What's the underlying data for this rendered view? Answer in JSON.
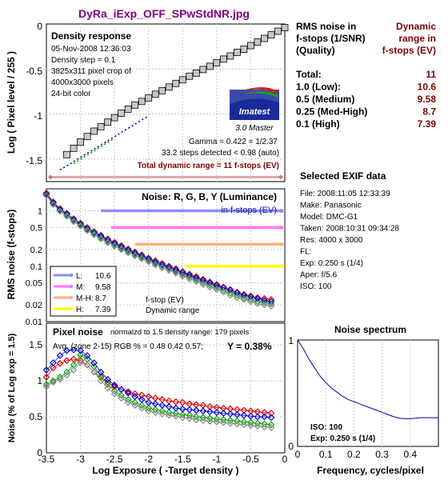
{
  "title": "DyRa_iExp_OFF_SPwStdNR.jpg",
  "colors": {
    "title": "#800080",
    "range": "#800000",
    "blue_text": "#1a1aa6",
    "marker_fill": "#c8c8c8"
  },
  "density": {
    "title": "Density response",
    "info": [
      "05-Nov-2008 12:36:03",
      "Density step = 0.1",
      "3825x311 pixel crop of",
      "4000x3000 pixels",
      "24-bit color"
    ],
    "gamma": "Gamma = 0.422 = 1/2.37",
    "steps": "33.2 steps detected < 0.98 (auto)",
    "total_range": "Total dynamic range = 11 f-stops (EV)",
    "ylabel": "Log ( Pixel level / 255 )",
    "yticks": [
      "0",
      "-0.5",
      "-1",
      "-1.5"
    ],
    "logo_text": "Imatest",
    "logo_version": "3.0  Master"
  },
  "noise_fstop": {
    "title": "Noise: R, G, B, Y (Luminance)",
    "subtitle": "in f-stops (EV)",
    "ylabel": "RMS noise (f-stops)",
    "yticks": [
      "1",
      "0.5",
      "0.2",
      "0.1",
      "0.05",
      "0.02",
      "0.01"
    ],
    "legend": [
      {
        "label": "L:",
        "value": "10.6",
        "color": "#8c8cff"
      },
      {
        "label": "M:",
        "value": "9.58",
        "color": "#ff77ff"
      },
      {
        "label": "M-H:",
        "value": "8.7",
        "color": "#ffb080"
      },
      {
        "label": "H:",
        "value": "7.39",
        "color": "#ffff00"
      }
    ],
    "note": [
      "f-stop (EV)",
      "Dynamic range"
    ]
  },
  "pixel_noise": {
    "title": "Pixel noise",
    "normalized": "normalzd to 1.5 density range: 179 pixels",
    "avg": "Avg. (zone 2-15) RGB % = 0.48  0.42  0.57;",
    "y_value": "Y = 0.38%",
    "ylabel": "Noise (% of Log exp = 1.5)",
    "xlabel": "Log Exposure ( -Target density )",
    "xticks": [
      "-3.5",
      "-3",
      "-2.5",
      "-2",
      "-1.5",
      "-1",
      "-0.5",
      "0"
    ],
    "yticks": [
      "1.5",
      "1",
      "0.5",
      "0"
    ]
  },
  "rms_table": {
    "head_left": [
      "RMS noise in",
      "f-stops (1/SNR)",
      "(Quality)"
    ],
    "head_right": [
      "Dynamic",
      "range in",
      "f-stops (EV)"
    ],
    "rows": [
      {
        "label": "Total:",
        "value": "11"
      },
      {
        "label": "1.0   (Low):",
        "value": "10.6"
      },
      {
        "label": "0.5   (Medium)",
        "value": "9.58"
      },
      {
        "label": "0.25 (Med-High)",
        "value": "8.7"
      },
      {
        "label": "0.1   (High)",
        "value": "7.39"
      }
    ]
  },
  "exif": {
    "title": "Selected EXIF data",
    "rows": [
      "File:  2008:11:05 12:33:39",
      "Make:  Panasonic",
      "Model: DMC-G1",
      "Taken: 2008:10:31 09:34:28",
      "Res:   4000 x 3000",
      "FL:",
      "Exp:   0.250 s  (1/4)",
      "Aper:  f/5.6",
      "ISO:   100"
    ]
  },
  "spectrum": {
    "title": "Noise spectrum",
    "xlabel": "Frequency, cycles/pixel",
    "xticks": [
      "0",
      "0.1",
      "0.2",
      "0.3",
      "0.4"
    ],
    "yticks": [
      "1",
      "0"
    ],
    "iso": "ISO:   100",
    "exp": "Exp:   0.250 s   (1/4)"
  },
  "chart_data": [
    {
      "type": "scatter",
      "title": "Density response",
      "ylabel": "Log ( Pixel level / 255 )",
      "xlim": [
        -3.5,
        0
      ],
      "ylim": [
        -1.75,
        0
      ],
      "series": [
        {
          "x": [
            -3.2,
            -3.1,
            -3.0,
            -2.9,
            -2.8,
            -2.7,
            -2.6,
            -2.5,
            -2.4,
            -2.3,
            -2.2,
            -2.1,
            -2.0,
            -1.9,
            -1.8,
            -1.7,
            -1.6,
            -1.5,
            -1.4,
            -1.3,
            -1.2,
            -1.1,
            -1.0,
            -0.9,
            -0.8,
            -0.7,
            -0.6,
            -0.5,
            -0.4,
            -0.3,
            -0.2,
            -0.1,
            0.0
          ],
          "y": [
            -1.45,
            -1.38,
            -1.31,
            -1.25,
            -1.19,
            -1.14,
            -1.09,
            -1.04,
            -0.99,
            -0.945,
            -0.9,
            -0.86,
            -0.82,
            -0.78,
            -0.74,
            -0.7,
            -0.66,
            -0.62,
            -0.58,
            -0.545,
            -0.505,
            -0.47,
            -0.43,
            -0.39,
            -0.355,
            -0.315,
            -0.28,
            -0.24,
            -0.2,
            -0.16,
            -0.12,
            -0.08,
            -0.04
          ]
        }
      ],
      "fit_lines": [
        {
          "color": "#0000cc",
          "points": [
            [
              -3.3,
              -1.62
            ],
            [
              -2.0,
              -1.02
            ]
          ]
        },
        {
          "color": "#00a000",
          "points": [
            [
              -3.1,
              -1.55
            ],
            [
              -2.5,
              -1.27
            ]
          ]
        }
      ],
      "range_bar": {
        "color": "#d8a8a8",
        "y": -1.7
      }
    },
    {
      "type": "line",
      "title": "Noise: R, G, B, Y (Luminance)",
      "ylabel": "RMS noise (f-stops)",
      "yscale": "log",
      "xlim": [
        -3.5,
        0
      ],
      "ylim": [
        0.01,
        2
      ],
      "thresholds": [
        {
          "value": 1.0,
          "start": -2.7,
          "color": "#8c8cff"
        },
        {
          "value": 0.5,
          "start": -2.55,
          "color": "#ff77ff"
        },
        {
          "value": 0.25,
          "start": -2.2,
          "color": "#ffb080"
        },
        {
          "value": 0.1,
          "start": -1.45,
          "color": "#ffff00"
        }
      ],
      "x": [
        -3.5,
        -3.4,
        -3.3,
        -3.2,
        -3.1,
        -3.0,
        -2.9,
        -2.8,
        -2.7,
        -2.6,
        -2.5,
        -2.4,
        -2.3,
        -2.2,
        -2.1,
        -2.0,
        -1.9,
        -1.8,
        -1.7,
        -1.6,
        -1.5,
        -1.4,
        -1.3,
        -1.2,
        -1.1,
        -1.0,
        -0.9,
        -0.8,
        -0.7,
        -0.6,
        -0.5,
        -0.4,
        -0.3,
        -0.2
      ],
      "series": [
        {
          "name": "R",
          "color": "#dd0000",
          "values": [
            2.1,
            1.45,
            1.1,
            0.9,
            0.72,
            0.6,
            0.5,
            0.42,
            0.36,
            0.31,
            0.27,
            0.235,
            0.205,
            0.18,
            0.16,
            0.14,
            0.125,
            0.112,
            0.1,
            0.09,
            0.08,
            0.072,
            0.065,
            0.058,
            0.052,
            0.047,
            0.042,
            0.038,
            0.034,
            0.031,
            0.029,
            0.027,
            0.026,
            0.025
          ]
        },
        {
          "name": "G",
          "color": "#00aa00",
          "values": [
            1.95,
            1.35,
            1.02,
            0.84,
            0.67,
            0.56,
            0.46,
            0.39,
            0.33,
            0.28,
            0.245,
            0.21,
            0.185,
            0.163,
            0.145,
            0.128,
            0.113,
            0.1,
            0.09,
            0.08,
            0.071,
            0.064,
            0.057,
            0.051,
            0.046,
            0.041,
            0.037,
            0.033,
            0.03,
            0.027,
            0.025,
            0.023,
            0.022,
            0.021
          ]
        },
        {
          "name": "B",
          "color": "#0000dd",
          "values": [
            2.0,
            1.4,
            1.06,
            0.88,
            0.7,
            0.58,
            0.48,
            0.41,
            0.35,
            0.3,
            0.26,
            0.225,
            0.197,
            0.173,
            0.153,
            0.136,
            0.12,
            0.107,
            0.096,
            0.086,
            0.077,
            0.069,
            0.062,
            0.056,
            0.05,
            0.045,
            0.041,
            0.037,
            0.033,
            0.03,
            0.028,
            0.026,
            0.024,
            0.023
          ]
        },
        {
          "name": "Y",
          "color": "#888888",
          "values": [
            1.9,
            1.3,
            0.98,
            0.8,
            0.64,
            0.53,
            0.44,
            0.37,
            0.31,
            0.265,
            0.23,
            0.2,
            0.175,
            0.154,
            0.136,
            0.12,
            0.106,
            0.094,
            0.084,
            0.075,
            0.066,
            0.059,
            0.053,
            0.047,
            0.042,
            0.038,
            0.034,
            0.03,
            0.027,
            0.025,
            0.023,
            0.021,
            0.02,
            0.019
          ]
        }
      ]
    },
    {
      "type": "line",
      "title": "Pixel noise",
      "xlabel": "Log Exposure ( -Target density )",
      "ylabel": "Noise (% of Log exp = 1.5)",
      "xlim": [
        -3.5,
        0
      ],
      "ylim": [
        0,
        1.8
      ],
      "x": [
        -3.5,
        -3.4,
        -3.3,
        -3.2,
        -3.1,
        -3.0,
        -2.9,
        -2.8,
        -2.7,
        -2.6,
        -2.5,
        -2.4,
        -2.3,
        -2.2,
        -2.1,
        -2.0,
        -1.9,
        -1.8,
        -1.7,
        -1.6,
        -1.5,
        -1.4,
        -1.3,
        -1.2,
        -1.1,
        -1.0,
        -0.9,
        -0.8,
        -0.7,
        -0.6,
        -0.5,
        -0.4,
        -0.3,
        -0.2
      ],
      "series": [
        {
          "name": "R",
          "color": "#dd0000",
          "values": [
            1.05,
            1.18,
            1.24,
            1.28,
            1.3,
            1.28,
            1.22,
            1.12,
            1.05,
            0.98,
            0.92,
            0.88,
            0.85,
            0.82,
            0.8,
            0.78,
            0.76,
            0.74,
            0.72,
            0.71,
            0.7,
            0.68,
            0.67,
            0.66,
            0.64,
            0.63,
            0.62,
            0.61,
            0.6,
            0.59,
            0.58,
            0.57,
            0.56,
            0.55
          ]
        },
        {
          "name": "G",
          "color": "#00aa00",
          "values": [
            0.95,
            1.0,
            1.05,
            1.12,
            1.22,
            1.36,
            1.3,
            1.2,
            1.06,
            0.95,
            0.86,
            0.8,
            0.74,
            0.7,
            0.66,
            0.62,
            0.6,
            0.58,
            0.56,
            0.55,
            0.53,
            0.52,
            0.5,
            0.49,
            0.48,
            0.47,
            0.46,
            0.45,
            0.44,
            0.43,
            0.42,
            0.41,
            0.4,
            0.39
          ]
        },
        {
          "name": "B",
          "color": "#0000dd",
          "values": [
            1.15,
            1.25,
            1.35,
            1.42,
            1.43,
            1.42,
            1.35,
            1.25,
            1.12,
            1.02,
            0.94,
            0.88,
            0.83,
            0.78,
            0.74,
            0.7,
            0.68,
            0.66,
            0.64,
            0.62,
            0.61,
            0.6,
            0.59,
            0.58,
            0.57,
            0.56,
            0.55,
            0.54,
            0.53,
            0.52,
            0.51,
            0.5,
            0.5,
            0.49
          ]
        },
        {
          "name": "Y",
          "color": "#888888",
          "values": [
            0.92,
            0.98,
            1.02,
            1.08,
            1.15,
            1.25,
            1.22,
            1.12,
            1.0,
            0.9,
            0.82,
            0.76,
            0.7,
            0.66,
            0.62,
            0.58,
            0.56,
            0.54,
            0.52,
            0.51,
            0.49,
            0.48,
            0.46,
            0.45,
            0.44,
            0.43,
            0.42,
            0.41,
            0.4,
            0.39,
            0.38,
            0.37,
            0.36,
            0.35
          ]
        }
      ]
    },
    {
      "type": "line",
      "title": "Noise spectrum",
      "xlabel": "Frequency, cycles/pixel",
      "xlim": [
        0,
        0.5
      ],
      "ylim": [
        0,
        1
      ],
      "x": [
        0.0,
        0.02,
        0.04,
        0.06,
        0.08,
        0.1,
        0.12,
        0.14,
        0.16,
        0.18,
        0.2,
        0.22,
        0.24,
        0.26,
        0.28,
        0.3,
        0.32,
        0.34,
        0.36,
        0.38,
        0.4,
        0.42,
        0.44,
        0.46,
        0.48,
        0.5
      ],
      "series": [
        {
          "color": "#0000aa",
          "values": [
            1.0,
            0.92,
            0.82,
            0.74,
            0.66,
            0.6,
            0.55,
            0.51,
            0.47,
            0.44,
            0.42,
            0.4,
            0.38,
            0.36,
            0.34,
            0.32,
            0.3,
            0.28,
            0.265,
            0.26,
            0.26,
            0.265,
            0.27,
            0.27,
            0.27,
            0.27
          ]
        }
      ]
    }
  ]
}
